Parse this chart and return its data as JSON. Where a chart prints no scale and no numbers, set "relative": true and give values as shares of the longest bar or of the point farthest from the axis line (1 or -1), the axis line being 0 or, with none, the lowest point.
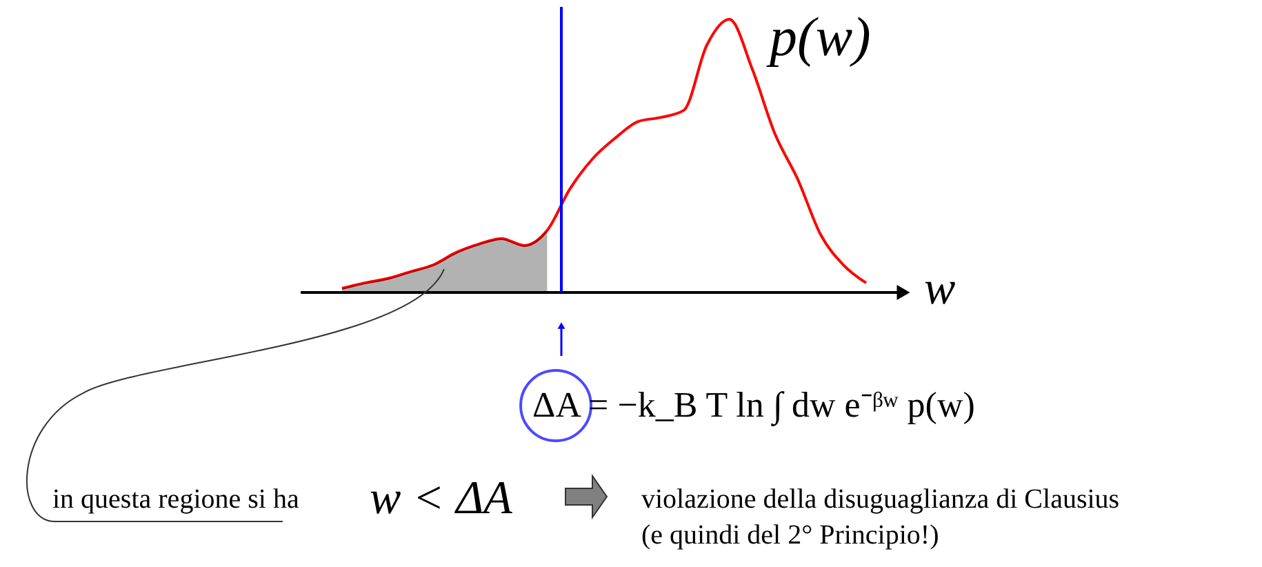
{
  "chart_data": {
    "type": "line",
    "relative": true,
    "categories": [
      null,
      null,
      null,
      null,
      null,
      null,
      null,
      null,
      null,
      null,
      null,
      null,
      null,
      null,
      null,
      null,
      null,
      null,
      null,
      null,
      null,
      null,
      null,
      null
    ],
    "series": [
      {
        "name": "p(w)",
        "color": "#ff0000",
        "values": [
          0.015,
          0.035,
          0.051,
          0.076,
          0.101,
          0.146,
          0.177,
          0.197,
          0.172,
          0.227,
          0.379,
          0.49,
          0.566,
          0.626,
          0.641,
          0.667,
          0.904,
          1.0,
          0.818,
          0.58,
          0.414,
          0.212,
          0.101,
          0.035
        ]
      },
      {
        "type": "area",
        "color": "#000000",
        "values": [
          0.015,
          0.035,
          0.051,
          0.076,
          0.101,
          0.146,
          0.177,
          0.197,
          0.172,
          0.227,
          null,
          null,
          null,
          null,
          null,
          null,
          null,
          null,
          null,
          null,
          null,
          null,
          null,
          null
        ]
      }
    ],
    "xlabel": "w",
    "annotations": [
      "ΔA = −k_B T ln ∫ dw e⁻ᵝʷ p(w)",
      "in questa regione si ha",
      "w < ΔA",
      "violazione della disuguaglianza di Clausius",
      "(e quindi del 2° Principio!)"
    ]
  }
}
